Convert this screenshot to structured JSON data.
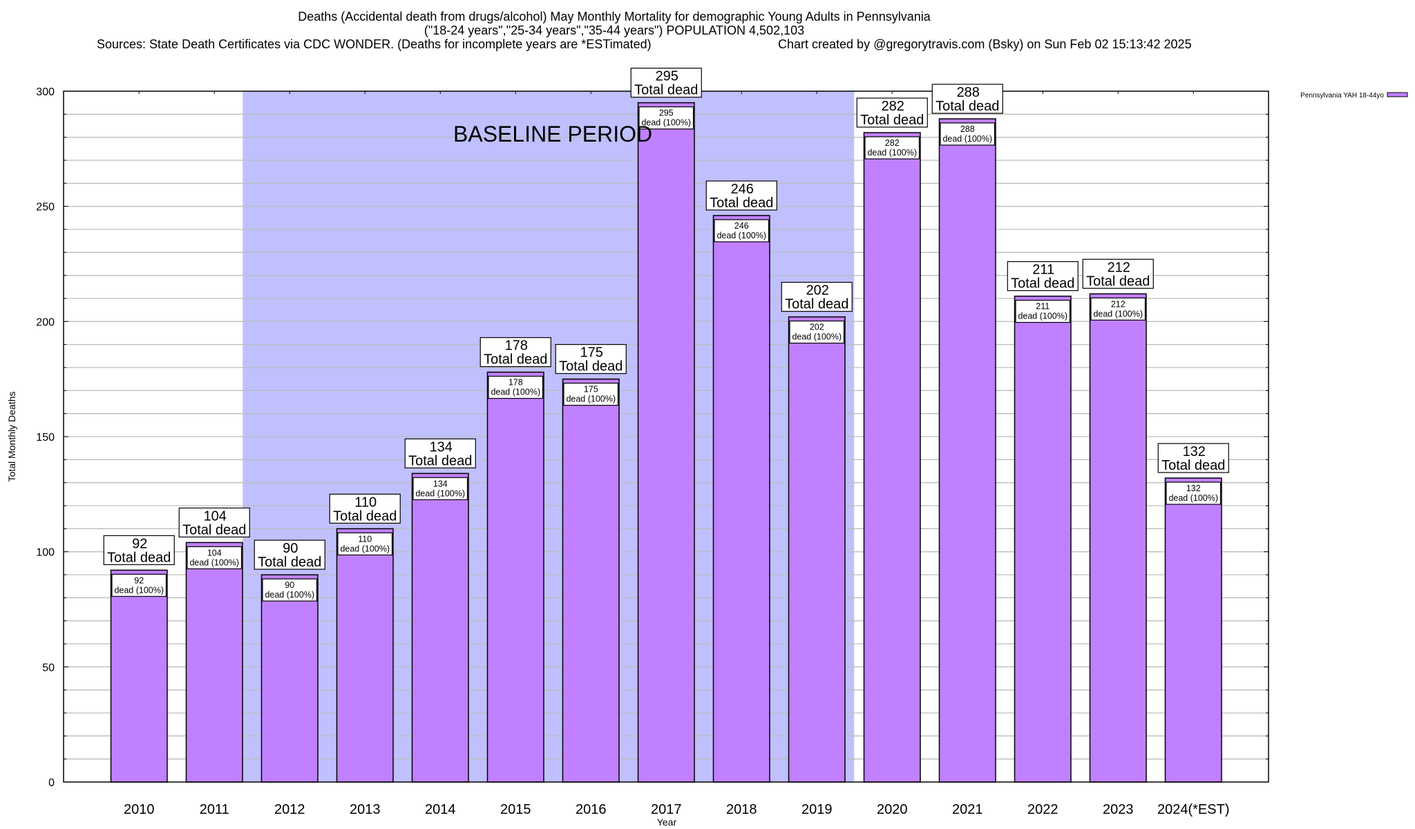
{
  "chart_data": {
    "type": "bar",
    "title": "Deaths (Accidental death from drugs/alcohol) May Monthly Mortality for demographic Young Adults in Pennsylvania",
    "subtitle": "(\"18-24 years\",\"25-34 years\",\"35-44 years\") POPULATION 4,502,103",
    "sources": "Sources: State Death Certificates via CDC WONDER. (Deaths for incomplete years are *ESTimated)",
    "credit": "Chart created by @gregorytravis.com (Bsky) on Sun Feb 02 15:13:42 2025",
    "xlabel": "Year",
    "ylabel": "Total Monthly Deaths",
    "ylim": [
      0,
      300
    ],
    "yticks": [
      0,
      50,
      100,
      150,
      200,
      250,
      300
    ],
    "minor_grid_step": 10,
    "grid": true,
    "legend": {
      "position": "top-right",
      "entries": [
        "Pennsylvania YAH 18-44yo"
      ]
    },
    "annotation": "BASELINE PERIOD",
    "baseline_period": [
      "2012",
      "2019"
    ],
    "categories": [
      "2010",
      "2011",
      "2012",
      "2013",
      "2014",
      "2015",
      "2016",
      "2017",
      "2018",
      "2019",
      "2020",
      "2021",
      "2022",
      "2023",
      "2024(*EST)"
    ],
    "series": [
      {
        "name": "Pennsylvania YAH 18-44yo",
        "values": [
          92,
          104,
          90,
          110,
          134,
          178,
          175,
          295,
          246,
          202,
          282,
          288,
          211,
          212,
          132
        ]
      }
    ],
    "total_label_suffix": "Total dead",
    "inner_label_suffix": "dead (100%)",
    "colors": {
      "bar": "#c080ff",
      "baseline": "#c0c0ff",
      "grid": "#bdbdbd"
    }
  }
}
